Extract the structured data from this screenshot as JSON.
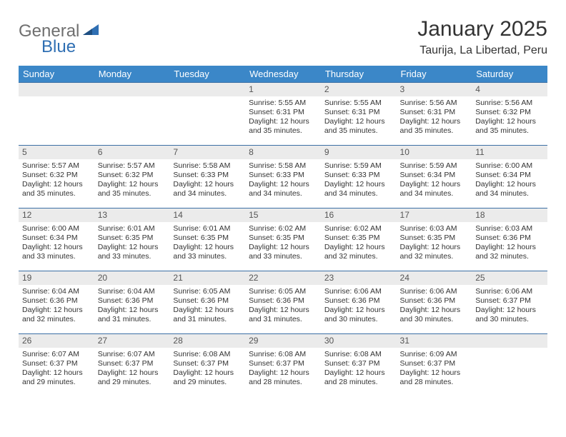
{
  "logo": {
    "text1": "General",
    "text2": "Blue"
  },
  "title": "January 2025",
  "location": "Taurija, La Libertad, Peru",
  "colors": {
    "header_bg": "#3b87c8",
    "header_text": "#ffffff",
    "row_border": "#3b6fa5",
    "daynum_bg": "#ebebeb",
    "daynum_text": "#555555",
    "body_text": "#333333",
    "logo_gray": "#6f6f6f",
    "logo_blue": "#2f6fb3",
    "background": "#ffffff"
  },
  "day_labels": [
    "Sunday",
    "Monday",
    "Tuesday",
    "Wednesday",
    "Thursday",
    "Friday",
    "Saturday"
  ],
  "weeks": [
    [
      null,
      null,
      null,
      {
        "n": "1",
        "sr": "5:55 AM",
        "ss": "6:31 PM",
        "dl": "12 hours and 35 minutes."
      },
      {
        "n": "2",
        "sr": "5:55 AM",
        "ss": "6:31 PM",
        "dl": "12 hours and 35 minutes."
      },
      {
        "n": "3",
        "sr": "5:56 AM",
        "ss": "6:31 PM",
        "dl": "12 hours and 35 minutes."
      },
      {
        "n": "4",
        "sr": "5:56 AM",
        "ss": "6:32 PM",
        "dl": "12 hours and 35 minutes."
      }
    ],
    [
      {
        "n": "5",
        "sr": "5:57 AM",
        "ss": "6:32 PM",
        "dl": "12 hours and 35 minutes."
      },
      {
        "n": "6",
        "sr": "5:57 AM",
        "ss": "6:32 PM",
        "dl": "12 hours and 35 minutes."
      },
      {
        "n": "7",
        "sr": "5:58 AM",
        "ss": "6:33 PM",
        "dl": "12 hours and 34 minutes."
      },
      {
        "n": "8",
        "sr": "5:58 AM",
        "ss": "6:33 PM",
        "dl": "12 hours and 34 minutes."
      },
      {
        "n": "9",
        "sr": "5:59 AM",
        "ss": "6:33 PM",
        "dl": "12 hours and 34 minutes."
      },
      {
        "n": "10",
        "sr": "5:59 AM",
        "ss": "6:34 PM",
        "dl": "12 hours and 34 minutes."
      },
      {
        "n": "11",
        "sr": "6:00 AM",
        "ss": "6:34 PM",
        "dl": "12 hours and 34 minutes."
      }
    ],
    [
      {
        "n": "12",
        "sr": "6:00 AM",
        "ss": "6:34 PM",
        "dl": "12 hours and 33 minutes."
      },
      {
        "n": "13",
        "sr": "6:01 AM",
        "ss": "6:35 PM",
        "dl": "12 hours and 33 minutes."
      },
      {
        "n": "14",
        "sr": "6:01 AM",
        "ss": "6:35 PM",
        "dl": "12 hours and 33 minutes."
      },
      {
        "n": "15",
        "sr": "6:02 AM",
        "ss": "6:35 PM",
        "dl": "12 hours and 33 minutes."
      },
      {
        "n": "16",
        "sr": "6:02 AM",
        "ss": "6:35 PM",
        "dl": "12 hours and 32 minutes."
      },
      {
        "n": "17",
        "sr": "6:03 AM",
        "ss": "6:35 PM",
        "dl": "12 hours and 32 minutes."
      },
      {
        "n": "18",
        "sr": "6:03 AM",
        "ss": "6:36 PM",
        "dl": "12 hours and 32 minutes."
      }
    ],
    [
      {
        "n": "19",
        "sr": "6:04 AM",
        "ss": "6:36 PM",
        "dl": "12 hours and 32 minutes."
      },
      {
        "n": "20",
        "sr": "6:04 AM",
        "ss": "6:36 PM",
        "dl": "12 hours and 31 minutes."
      },
      {
        "n": "21",
        "sr": "6:05 AM",
        "ss": "6:36 PM",
        "dl": "12 hours and 31 minutes."
      },
      {
        "n": "22",
        "sr": "6:05 AM",
        "ss": "6:36 PM",
        "dl": "12 hours and 31 minutes."
      },
      {
        "n": "23",
        "sr": "6:06 AM",
        "ss": "6:36 PM",
        "dl": "12 hours and 30 minutes."
      },
      {
        "n": "24",
        "sr": "6:06 AM",
        "ss": "6:36 PM",
        "dl": "12 hours and 30 minutes."
      },
      {
        "n": "25",
        "sr": "6:06 AM",
        "ss": "6:37 PM",
        "dl": "12 hours and 30 minutes."
      }
    ],
    [
      {
        "n": "26",
        "sr": "6:07 AM",
        "ss": "6:37 PM",
        "dl": "12 hours and 29 minutes."
      },
      {
        "n": "27",
        "sr": "6:07 AM",
        "ss": "6:37 PM",
        "dl": "12 hours and 29 minutes."
      },
      {
        "n": "28",
        "sr": "6:08 AM",
        "ss": "6:37 PM",
        "dl": "12 hours and 29 minutes."
      },
      {
        "n": "29",
        "sr": "6:08 AM",
        "ss": "6:37 PM",
        "dl": "12 hours and 28 minutes."
      },
      {
        "n": "30",
        "sr": "6:08 AM",
        "ss": "6:37 PM",
        "dl": "12 hours and 28 minutes."
      },
      {
        "n": "31",
        "sr": "6:09 AM",
        "ss": "6:37 PM",
        "dl": "12 hours and 28 minutes."
      },
      null
    ]
  ],
  "labels": {
    "sunrise": "Sunrise:",
    "sunset": "Sunset:",
    "daylight": "Daylight:"
  }
}
